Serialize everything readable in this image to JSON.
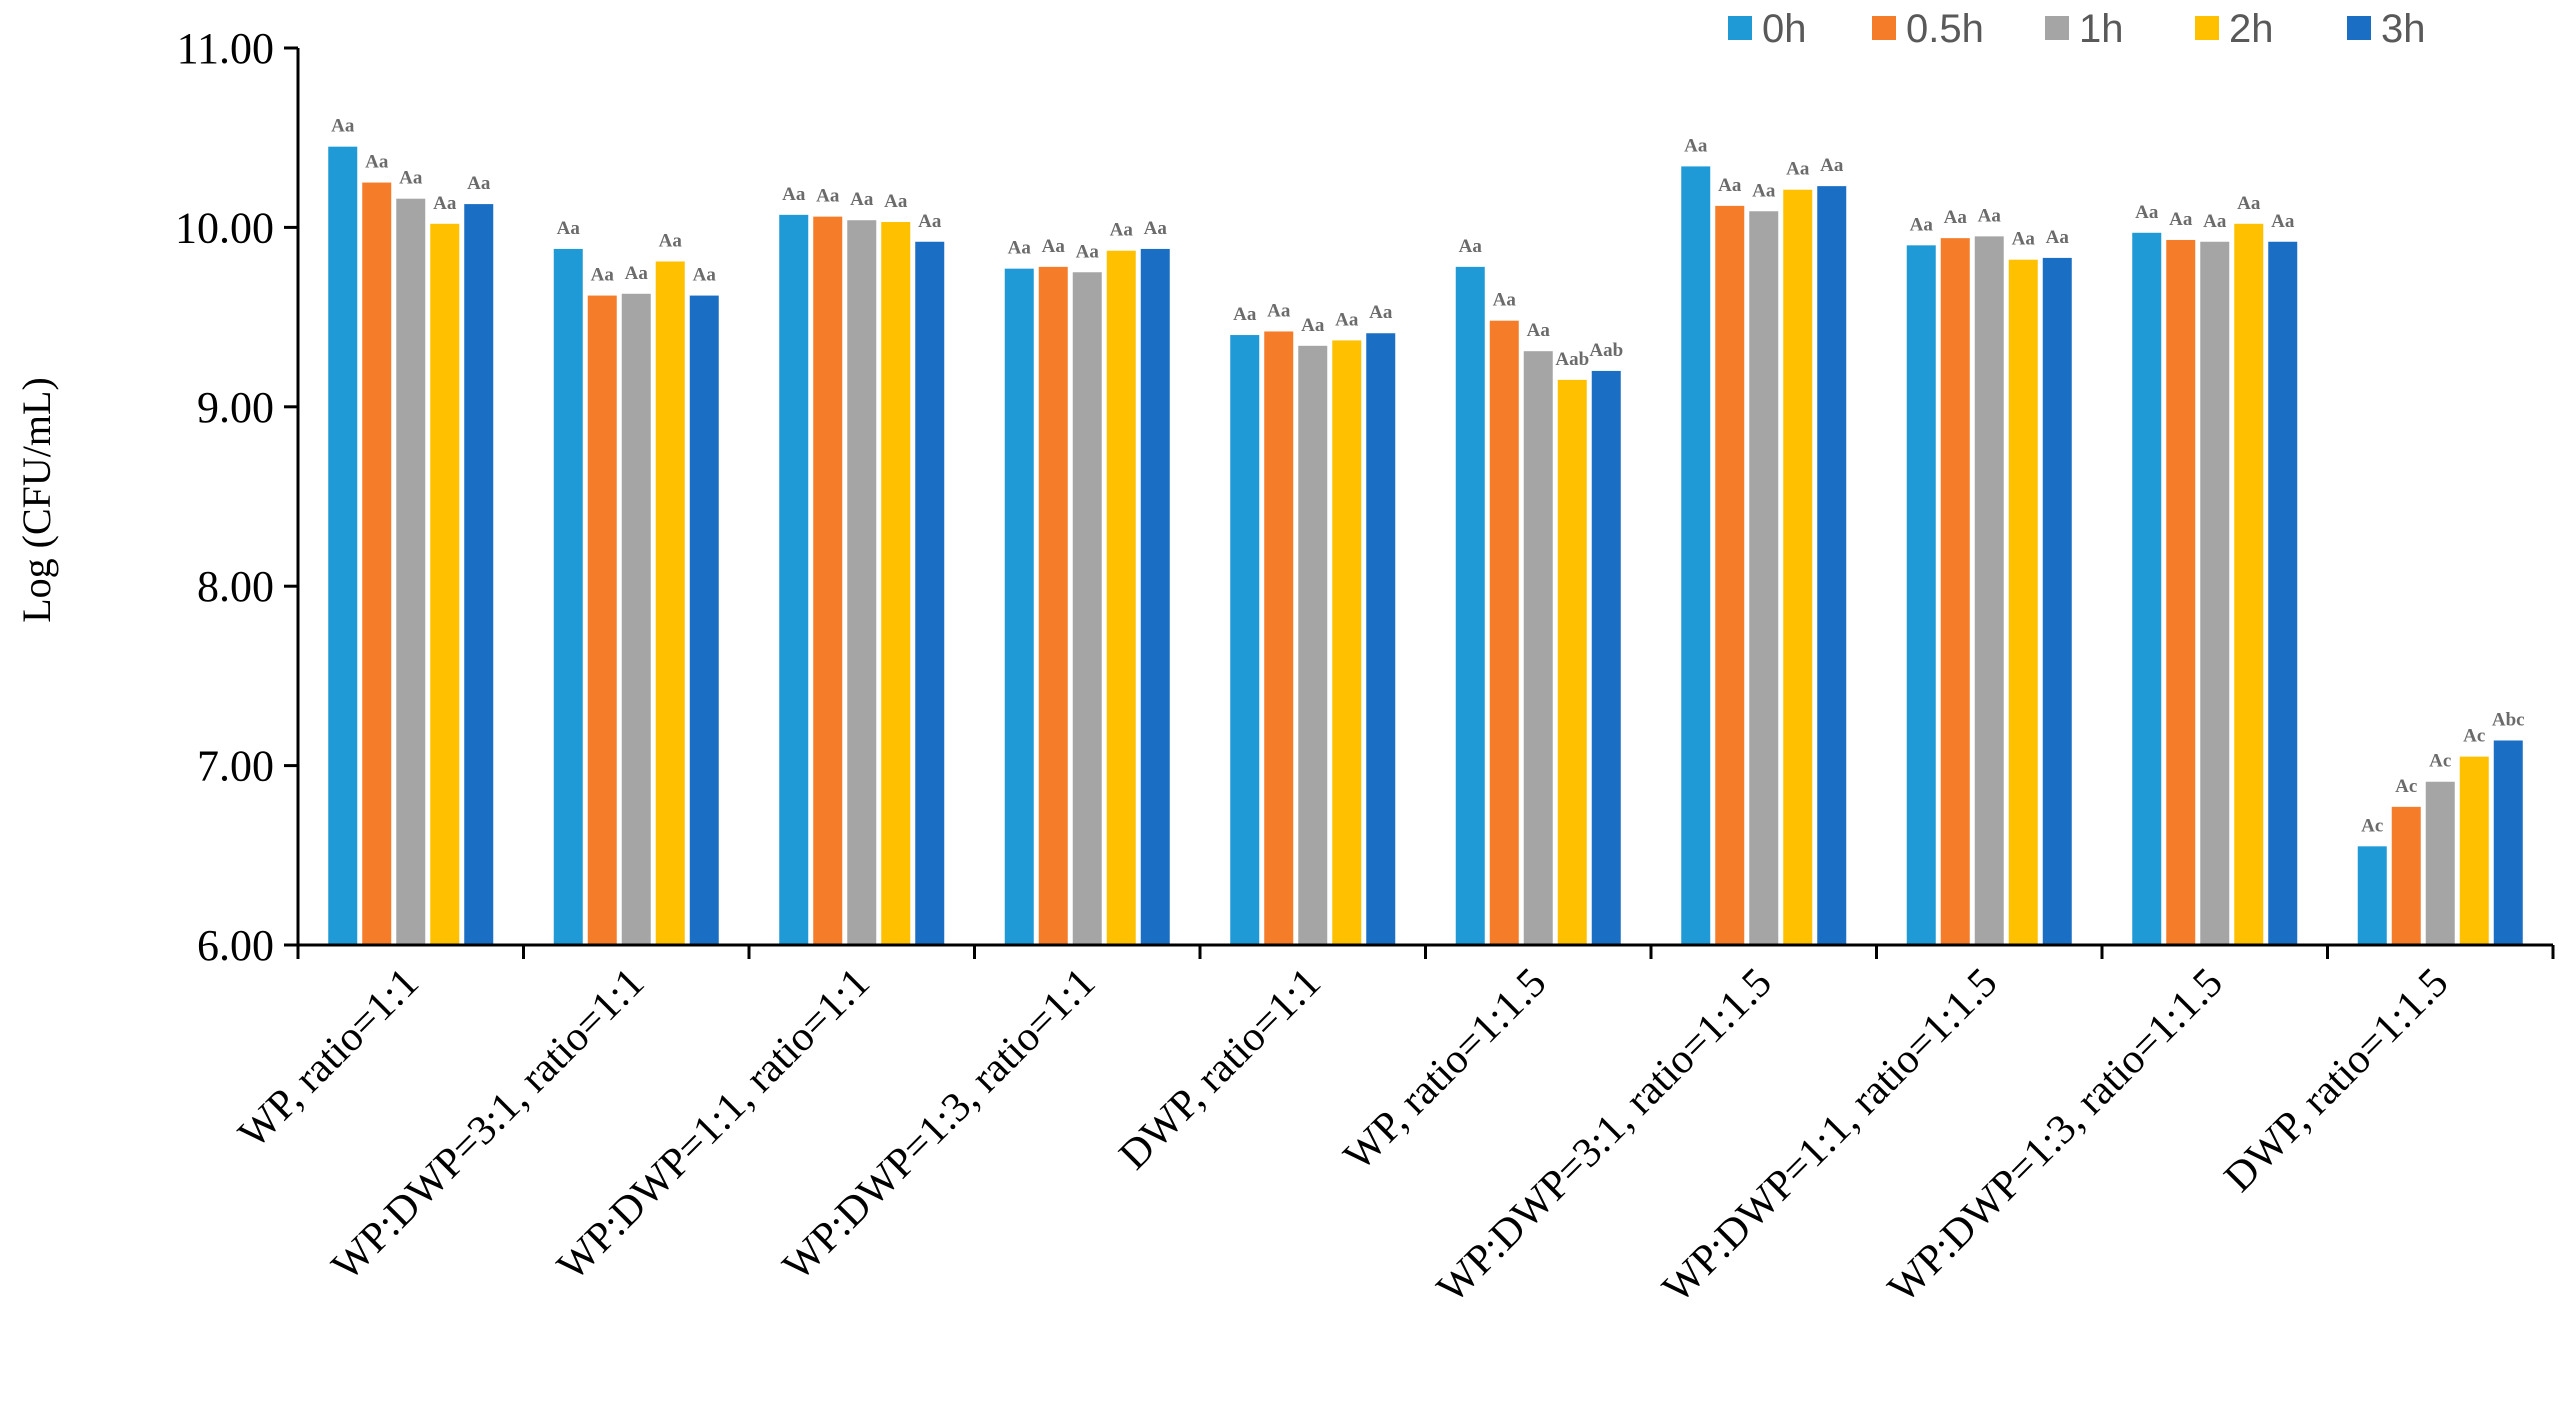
{
  "chart_data": {
    "type": "bar",
    "title": "",
    "xlabel": "",
    "ylabel": "Log (CFU/mL)",
    "ylim": [
      6,
      11
    ],
    "yticks": [
      "6.00",
      "7.00",
      "8.00",
      "9.00",
      "10.00",
      "11.00"
    ],
    "ytick_values": [
      6,
      7,
      8,
      9,
      10,
      11
    ],
    "legend_position": "top-right",
    "categories": [
      "WP, ratio=1:1",
      "WP:DWP=3:1, ratio=1:1",
      "WP:DWP=1:1, ratio=1:1",
      "WP:DWP=1:3, ratio=1:1",
      "DWP, ratio=1:1",
      "WP, ratio=1:1.5",
      "WP:DWP=3:1, ratio=1:1.5",
      "WP:DWP=1:1, ratio=1:1.5",
      "WP:DWP=1:3, ratio=1:1.5",
      "DWP, ratio=1:1.5"
    ],
    "series": [
      {
        "name": "0h",
        "color": "#1f9ad6",
        "values": [
          10.45,
          9.88,
          10.07,
          9.77,
          9.4,
          9.78,
          10.34,
          9.9,
          9.97,
          6.55
        ],
        "labels": [
          "Aa",
          "Aa",
          "Aa",
          "Aa",
          "Aa",
          "Aa",
          "Aa",
          "Aa",
          "Aa",
          "Ac"
        ]
      },
      {
        "name": "0.5h",
        "color": "#f57c28",
        "values": [
          10.25,
          9.62,
          10.06,
          9.78,
          9.42,
          9.48,
          10.12,
          9.94,
          9.93,
          6.77
        ],
        "labels": [
          "Aa",
          "Aa",
          "Aa",
          "Aa",
          "Aa",
          "Aa",
          "Aa",
          "Aa",
          "Aa",
          "Ac"
        ]
      },
      {
        "name": "1h",
        "color": "#a5a5a5",
        "values": [
          10.16,
          9.63,
          10.04,
          9.75,
          9.34,
          9.31,
          10.09,
          9.95,
          9.92,
          6.91
        ],
        "labels": [
          "Aa",
          "Aa",
          "Aa",
          "Aa",
          "Aa",
          "Aa",
          "Aa",
          "Aa",
          "Aa",
          "Ac"
        ]
      },
      {
        "name": "2h",
        "color": "#ffc000",
        "values": [
          10.02,
          9.81,
          10.03,
          9.87,
          9.37,
          9.15,
          10.21,
          9.82,
          10.02,
          7.05
        ],
        "labels": [
          "Aa",
          "Aa",
          "Aa",
          "Aa",
          "Aa",
          "Aab",
          "Aa",
          "Aa",
          "Aa",
          "Ac"
        ]
      },
      {
        "name": "3h",
        "color": "#1a6fc4",
        "values": [
          10.13,
          9.62,
          9.92,
          9.88,
          9.41,
          9.2,
          10.23,
          9.83,
          9.92,
          7.14
        ],
        "labels": [
          "Aa",
          "Aa",
          "Aa",
          "Aa",
          "Aa",
          "Aab",
          "Aa",
          "Aa",
          "Aa",
          "Abc"
        ]
      }
    ]
  }
}
